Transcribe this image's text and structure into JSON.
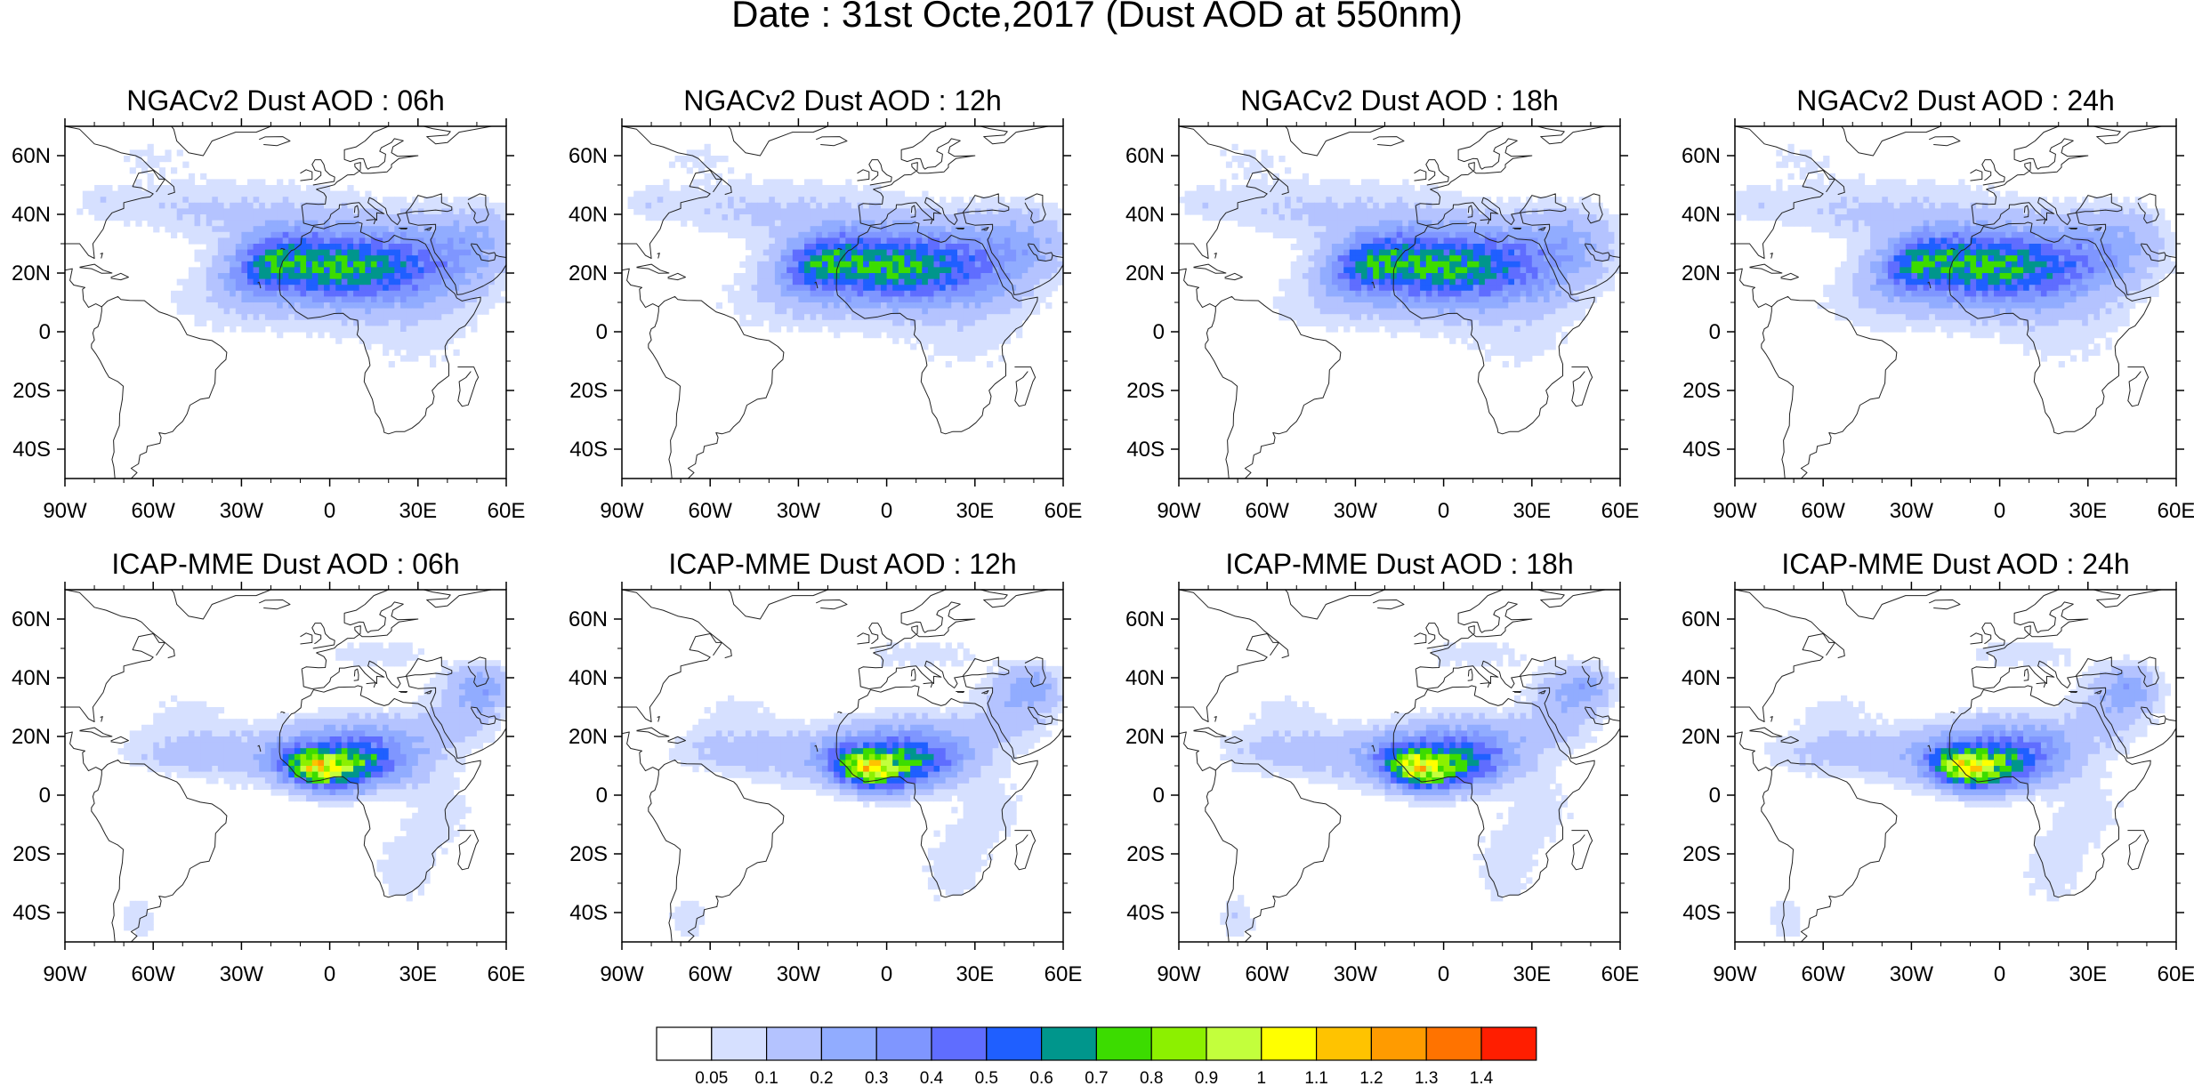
{
  "title": "Date : 31st Octe,2017 (Dust AOD at 550nm)",
  "panels": [
    {
      "title": "NGACv2 Dust AOD : 06h",
      "model": "NGAC",
      "hour": 6
    },
    {
      "title": "NGACv2 Dust AOD : 12h",
      "model": "NGAC",
      "hour": 12
    },
    {
      "title": "NGACv2 Dust AOD : 18h",
      "model": "NGAC",
      "hour": 18
    },
    {
      "title": "NGACv2 Dust AOD : 24h",
      "model": "NGAC",
      "hour": 24
    },
    {
      "title": "ICAP-MME Dust AOD : 06h",
      "model": "ICAP",
      "hour": 6
    },
    {
      "title": "ICAP-MME Dust AOD : 12h",
      "model": "ICAP",
      "hour": 12
    },
    {
      "title": "ICAP-MME Dust AOD : 18h",
      "model": "ICAP",
      "hour": 18
    },
    {
      "title": "ICAP-MME Dust AOD : 24h",
      "model": "ICAP",
      "hour": 24
    }
  ],
  "map": {
    "lon_range": [
      -90,
      60
    ],
    "lat_range": [
      -50,
      70
    ],
    "lon_ticks": [
      {
        "value": -90,
        "label": "90W"
      },
      {
        "value": -60,
        "label": "60W"
      },
      {
        "value": -30,
        "label": "30W"
      },
      {
        "value": 0,
        "label": "0"
      },
      {
        "value": 30,
        "label": "30E"
      },
      {
        "value": 60,
        "label": "60E"
      }
    ],
    "lat_ticks": [
      {
        "value": 60,
        "label": "60N"
      },
      {
        "value": 40,
        "label": "40N"
      },
      {
        "value": 20,
        "label": "20N"
      },
      {
        "value": 0,
        "label": "0"
      },
      {
        "value": -20,
        "label": "20S"
      },
      {
        "value": -40,
        "label": "40S"
      }
    ]
  },
  "colorbar": {
    "labels": [
      "0.05",
      "0.1",
      "0.2",
      "0.3",
      "0.4",
      "0.5",
      "0.6",
      "0.7",
      "0.8",
      "0.9",
      "1",
      "1.1",
      "1.2",
      "1.3",
      "1.4"
    ],
    "colors": [
      "#ffffff",
      "#d6e0ff",
      "#b4c3ff",
      "#91acff",
      "#7f96ff",
      "#5f6dff",
      "#1f5fff",
      "#00968c",
      "#3cdc00",
      "#8cf000",
      "#c3ff3c",
      "#ffff00",
      "#ffc300",
      "#ff9b00",
      "#ff7300",
      "#ff1e00"
    ]
  }
}
